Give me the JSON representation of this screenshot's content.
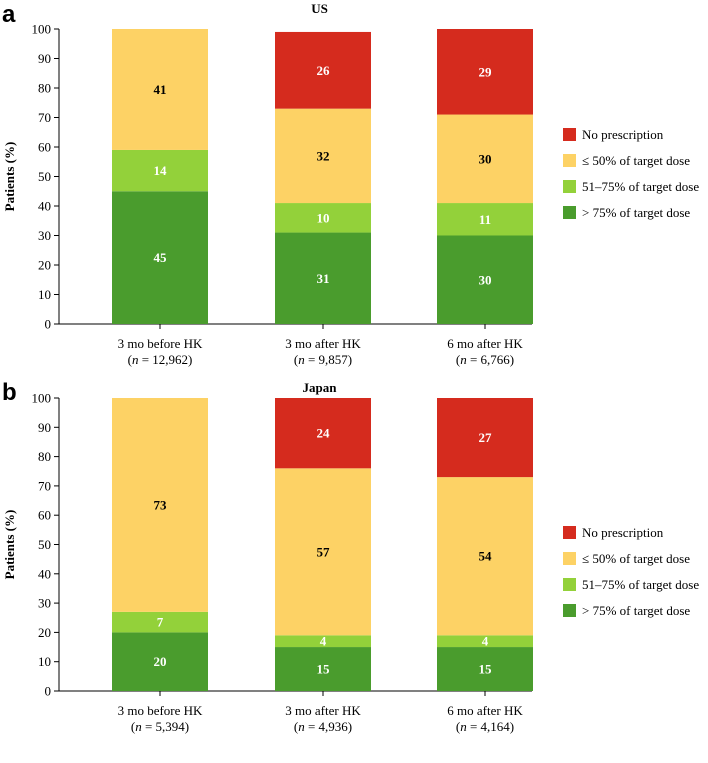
{
  "colors": {
    "no_prescription": "#d52b1e",
    "le_50": "#fdd265",
    "p51_75": "#93d13a",
    "gt_75": "#4a9c2d"
  },
  "legend": [
    {
      "key": "no_prescription",
      "label": "No prescription"
    },
    {
      "key": "le_50",
      "label": "≤ 50% of target dose"
    },
    {
      "key": "p51_75",
      "label": "51–75% of target dose"
    },
    {
      "key": "gt_75",
      "label": "> 75% of target dose"
    }
  ],
  "chart_data": [
    {
      "type": "bar",
      "stacked": true,
      "panel": "a",
      "title": "US",
      "ylabel": "Patients (%)",
      "ylim": [
        0,
        100
      ],
      "yticks": [
        0,
        10,
        20,
        30,
        40,
        50,
        60,
        70,
        80,
        90,
        100
      ],
      "categories": [
        {
          "name": "3 mo before HK",
          "n_prefix": "(",
          "n_var": "n",
          "n_value": " = 12,962)"
        },
        {
          "name": "3 mo after HK",
          "n_prefix": "(",
          "n_var": "n",
          "n_value": " = 9,857)"
        },
        {
          "name": "6 mo after HK",
          "n_prefix": "(",
          "n_var": "n",
          "n_value": " = 6,766)"
        }
      ],
      "series": [
        {
          "key": "gt_75",
          "name": "> 75% of target dose",
          "values": [
            45,
            31,
            30
          ],
          "labels": [
            "45",
            "31",
            "30"
          ]
        },
        {
          "key": "p51_75",
          "name": "51–75% of target dose",
          "values": [
            14,
            10,
            11
          ],
          "labels": [
            "14",
            "10",
            "11"
          ]
        },
        {
          "key": "le_50",
          "name": "≤ 50% of target dose",
          "values": [
            41,
            32,
            30
          ],
          "labels": [
            "41",
            "32",
            "30"
          ]
        },
        {
          "key": "no_prescription",
          "name": "No prescription",
          "values": [
            0,
            26,
            29
          ],
          "labels": [
            "",
            "26",
            "29"
          ]
        }
      ]
    },
    {
      "type": "bar",
      "stacked": true,
      "panel": "b",
      "title": "Japan",
      "ylabel": "Patients (%)",
      "ylim": [
        0,
        100
      ],
      "yticks": [
        0,
        10,
        20,
        30,
        40,
        50,
        60,
        70,
        80,
        90,
        100
      ],
      "categories": [
        {
          "name": "3 mo before HK",
          "n_prefix": "(",
          "n_var": "n",
          "n_value": " = 5,394)"
        },
        {
          "name": "3 mo after HK",
          "n_prefix": "(",
          "n_var": "n",
          "n_value": " = 4,936)"
        },
        {
          "name": "6 mo after HK",
          "n_prefix": "(",
          "n_var": "n",
          "n_value": " = 4,164)"
        }
      ],
      "series": [
        {
          "key": "gt_75",
          "name": "> 75% of target dose",
          "values": [
            20,
            15,
            15
          ],
          "labels": [
            "20",
            "15",
            "15"
          ]
        },
        {
          "key": "p51_75",
          "name": "51–75% of target dose",
          "values": [
            7,
            4,
            4
          ],
          "labels": [
            "7",
            "4",
            "4"
          ]
        },
        {
          "key": "le_50",
          "name": "≤ 50% of target dose",
          "values": [
            73,
            57,
            54
          ],
          "labels": [
            "73",
            "57",
            "54"
          ]
        },
        {
          "key": "no_prescription",
          "name": "No prescription",
          "values": [
            0,
            24,
            27
          ],
          "labels": [
            "",
            "24",
            "27"
          ]
        }
      ]
    }
  ]
}
